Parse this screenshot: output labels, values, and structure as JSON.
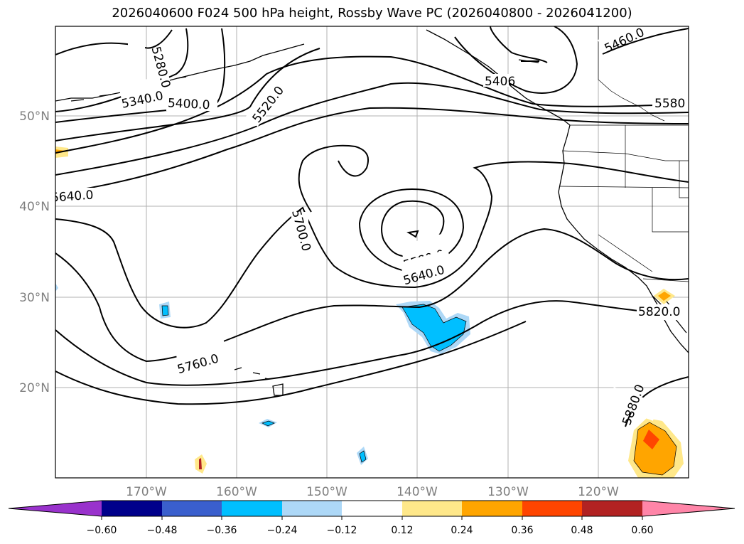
{
  "title": "2026040600 F024 500 hPa height, Rossby Wave PC (2026040800 - 2026041200)",
  "map": {
    "lat_labels": [
      "50°N",
      "40°N",
      "30°N",
      "20°N"
    ],
    "lon_labels": [
      "170°W",
      "160°W",
      "150°W",
      "140°W",
      "130°W",
      "120°W"
    ],
    "contour_labels": [
      "5280.0",
      "5340.0",
      "5400.0",
      "5520.0",
      "5460.0",
      "5580",
      "5640.0",
      "5700.0",
      "5580.0",
      "5640.0",
      "5760.0",
      "5820.0",
      "5880.0",
      "5406"
    ],
    "colors": {
      "contour": "#000000",
      "grid": "#b0b0b0",
      "negative_strong": "#00bfff",
      "negative_weak": "#add8f7",
      "positive_weak": "#ffe88a",
      "positive_mid": "#ffa500",
      "positive_strong": "#ff4500"
    }
  },
  "colorbar": {
    "ticks": [
      "−0.60",
      "−0.48",
      "−0.36",
      "−0.24",
      "−0.12",
      "0.12",
      "0.24",
      "0.36",
      "0.48",
      "0.60"
    ],
    "colors": [
      "#9932cc",
      "#00008b",
      "#3a5fcd",
      "#00bfff",
      "#add8f7",
      "#ffffff",
      "#ffe88a",
      "#ffa500",
      "#ff4500",
      "#b22222",
      "#ff85a8"
    ]
  }
}
